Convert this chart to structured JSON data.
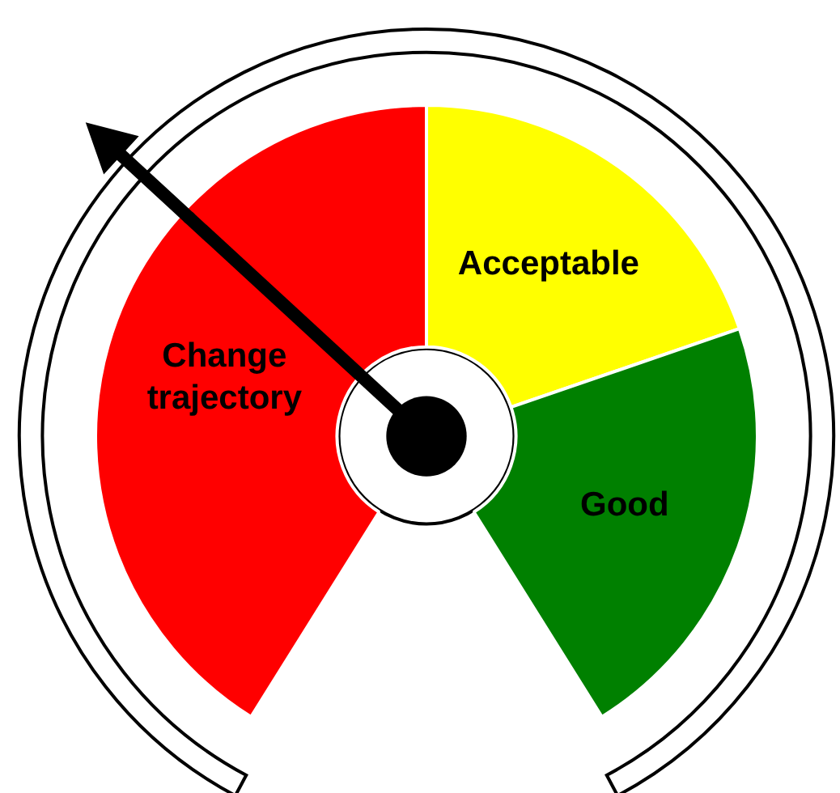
{
  "chart_data": {
    "type": "donut",
    "categories": [
      "Change trajectory",
      "Acceptable",
      "Good"
    ],
    "values": [
      50,
      24,
      26
    ],
    "colors": [
      "#ff0000",
      "#ffff00",
      "#008000"
    ],
    "needle": "Change trajectory"
  }
}
